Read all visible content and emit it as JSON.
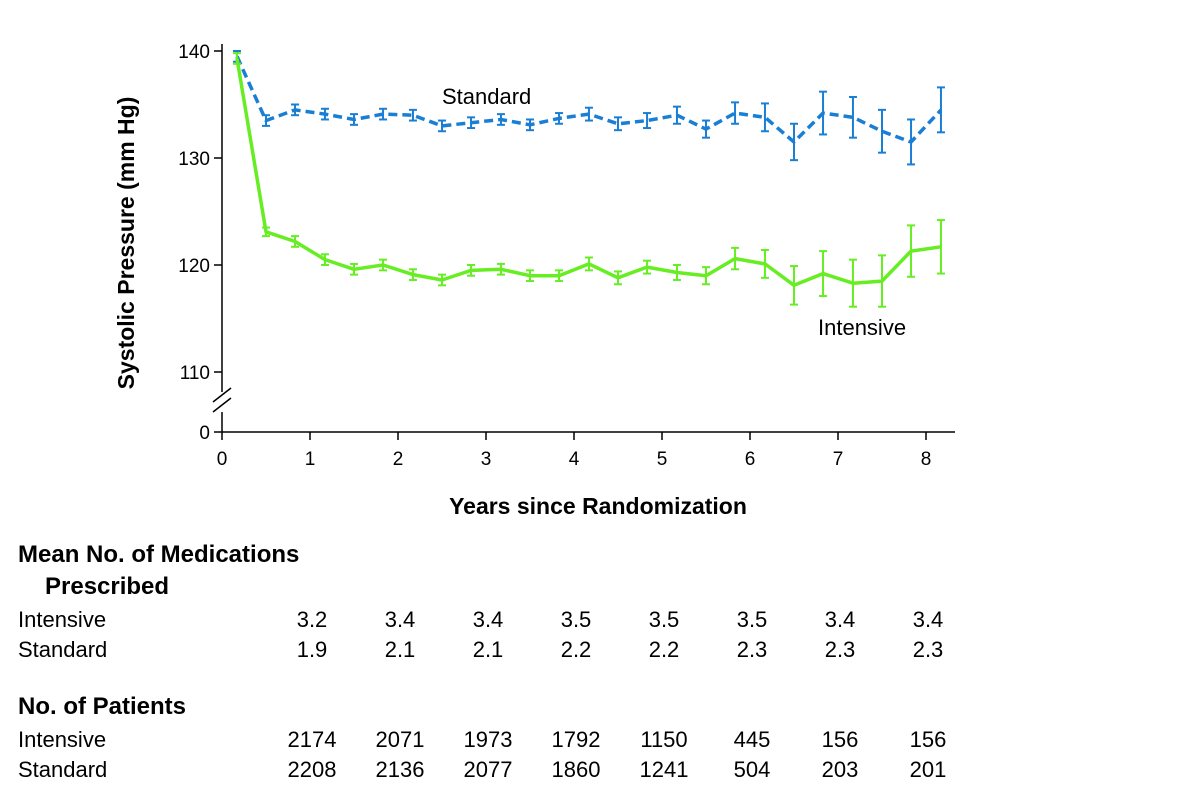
{
  "chart_data": {
    "type": "line",
    "xlabel": "Years since Randomization",
    "ylabel": "Systolic Pressure (mm Hg)",
    "x_ticks": [
      "0",
      "1",
      "2",
      "3",
      "4",
      "5",
      "6",
      "7",
      "8"
    ],
    "y_ticks": [
      "110",
      "120",
      "130",
      "140"
    ],
    "y_zero_label": "0",
    "xlim": [
      0,
      8.3
    ],
    "ylim": [
      107,
      140
    ],
    "axis_break": true,
    "grid": false,
    "legend": "inline labels",
    "series": [
      {
        "name": "Standard",
        "color": "#1a7fd4",
        "line_style": "dashed",
        "points": [
          {
            "x": 0.17,
            "y": 139.5,
            "err": 0.5
          },
          {
            "x": 0.5,
            "y": 133.5,
            "err": 0.5
          },
          {
            "x": 0.83,
            "y": 134.5,
            "err": 0.5
          },
          {
            "x": 1.17,
            "y": 134.1,
            "err": 0.5
          },
          {
            "x": 1.5,
            "y": 133.6,
            "err": 0.5
          },
          {
            "x": 1.83,
            "y": 134.1,
            "err": 0.5
          },
          {
            "x": 2.17,
            "y": 134.0,
            "err": 0.5
          },
          {
            "x": 2.5,
            "y": 133.0,
            "err": 0.5
          },
          {
            "x": 2.83,
            "y": 133.3,
            "err": 0.5
          },
          {
            "x": 3.17,
            "y": 133.6,
            "err": 0.5
          },
          {
            "x": 3.5,
            "y": 133.1,
            "err": 0.5
          },
          {
            "x": 3.83,
            "y": 133.7,
            "err": 0.5
          },
          {
            "x": 4.17,
            "y": 134.1,
            "err": 0.6
          },
          {
            "x": 4.5,
            "y": 133.2,
            "err": 0.6
          },
          {
            "x": 4.83,
            "y": 133.5,
            "err": 0.7
          },
          {
            "x": 5.17,
            "y": 134.0,
            "err": 0.8
          },
          {
            "x": 5.5,
            "y": 132.7,
            "err": 0.8
          },
          {
            "x": 5.83,
            "y": 134.2,
            "err": 1.0
          },
          {
            "x": 6.17,
            "y": 133.8,
            "err": 1.3
          },
          {
            "x": 6.5,
            "y": 131.5,
            "err": 1.7
          },
          {
            "x": 6.83,
            "y": 134.2,
            "err": 2.0
          },
          {
            "x": 7.17,
            "y": 133.8,
            "err": 1.9
          },
          {
            "x": 7.5,
            "y": 132.5,
            "err": 2.0
          },
          {
            "x": 7.83,
            "y": 131.5,
            "err": 2.1
          },
          {
            "x": 8.17,
            "y": 134.5,
            "err": 2.1
          }
        ]
      },
      {
        "name": "Intensive",
        "color": "#66ee22",
        "line_style": "solid",
        "points": [
          {
            "x": 0.17,
            "y": 139.3,
            "err": 0.5
          },
          {
            "x": 0.5,
            "y": 123.1,
            "err": 0.4
          },
          {
            "x": 0.83,
            "y": 122.2,
            "err": 0.5
          },
          {
            "x": 1.17,
            "y": 120.5,
            "err": 0.5
          },
          {
            "x": 1.5,
            "y": 119.6,
            "err": 0.5
          },
          {
            "x": 1.83,
            "y": 120.0,
            "err": 0.5
          },
          {
            "x": 2.17,
            "y": 119.1,
            "err": 0.5
          },
          {
            "x": 2.5,
            "y": 118.6,
            "err": 0.5
          },
          {
            "x": 2.83,
            "y": 119.5,
            "err": 0.5
          },
          {
            "x": 3.17,
            "y": 119.6,
            "err": 0.5
          },
          {
            "x": 3.5,
            "y": 119.0,
            "err": 0.5
          },
          {
            "x": 3.83,
            "y": 119.0,
            "err": 0.5
          },
          {
            "x": 4.17,
            "y": 120.1,
            "err": 0.6
          },
          {
            "x": 4.5,
            "y": 118.8,
            "err": 0.6
          },
          {
            "x": 4.83,
            "y": 119.8,
            "err": 0.6
          },
          {
            "x": 5.17,
            "y": 119.3,
            "err": 0.7
          },
          {
            "x": 5.5,
            "y": 119.0,
            "err": 0.8
          },
          {
            "x": 5.83,
            "y": 120.6,
            "err": 1.0
          },
          {
            "x": 6.17,
            "y": 120.1,
            "err": 1.3
          },
          {
            "x": 6.5,
            "y": 118.1,
            "err": 1.8
          },
          {
            "x": 6.83,
            "y": 119.2,
            "err": 2.1
          },
          {
            "x": 7.17,
            "y": 118.3,
            "err": 2.2
          },
          {
            "x": 7.5,
            "y": 118.5,
            "err": 2.4
          },
          {
            "x": 7.83,
            "y": 121.3,
            "err": 2.4
          },
          {
            "x": 8.17,
            "y": 121.7,
            "err": 2.5
          }
        ]
      }
    ]
  },
  "tables": {
    "medications": {
      "heading_line1": "Mean No. of Medications",
      "heading_line2": "Prescribed",
      "rows": [
        {
          "label": "Intensive",
          "values": [
            "3.2",
            "3.4",
            "3.4",
            "3.5",
            "3.5",
            "3.5",
            "3.4",
            "3.4"
          ]
        },
        {
          "label": "Standard",
          "values": [
            "1.9",
            "2.1",
            "2.1",
            "2.2",
            "2.2",
            "2.3",
            "2.3",
            "2.3"
          ]
        }
      ]
    },
    "patients": {
      "heading": "No. of Patients",
      "rows": [
        {
          "label": "Intensive",
          "values": [
            "2174",
            "2071",
            "1973",
            "1792",
            "1150",
            "445",
            "156",
            "156"
          ]
        },
        {
          "label": "Standard",
          "values": [
            "2208",
            "2136",
            "2077",
            "1860",
            "1241",
            "504",
            "203",
            "201"
          ]
        }
      ]
    }
  }
}
